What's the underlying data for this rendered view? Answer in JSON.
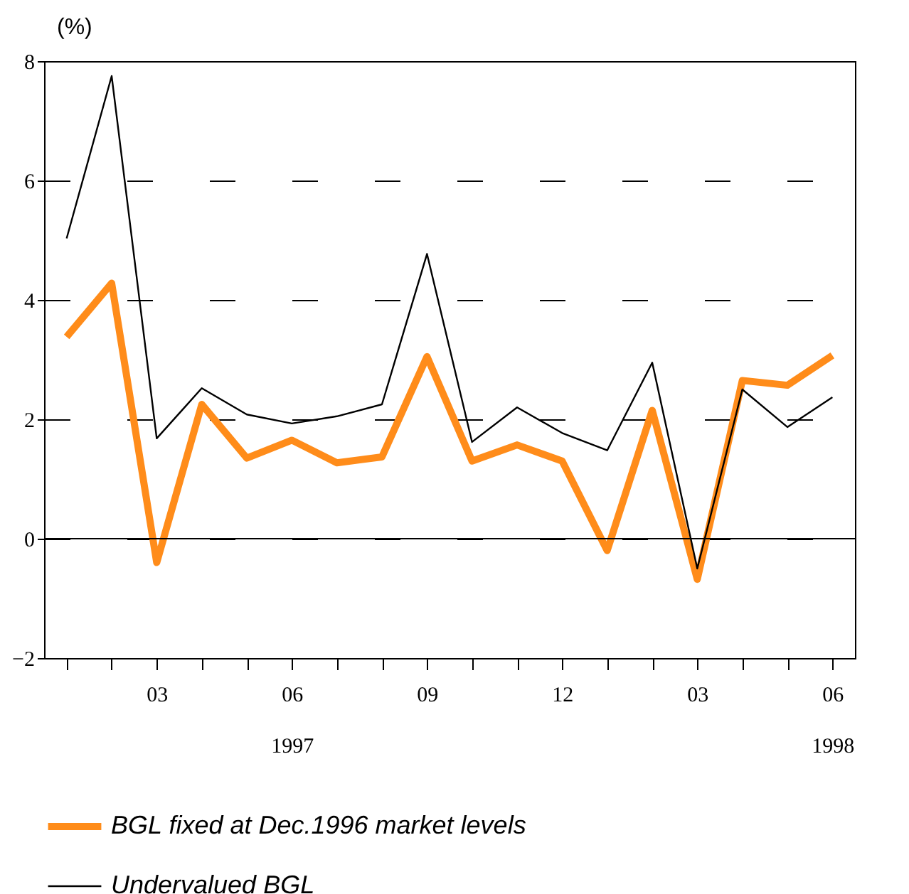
{
  "chart_data": {
    "type": "line",
    "ylabel": "(%)",
    "categories": [
      null,
      null,
      "03",
      null,
      null,
      "06\n1997",
      null,
      null,
      "09",
      null,
      null,
      "12",
      null,
      null,
      "03",
      null,
      null,
      "06\n1998"
    ],
    "series": [
      {
        "name": "BGL fixed at Dec.1996 market levels",
        "color": "#ff8c1a",
        "values": [
          3.38,
          4.28,
          -0.4,
          2.25,
          1.35,
          1.65,
          1.27,
          1.37,
          3.05,
          1.3,
          1.57,
          1.3,
          -0.2,
          2.15,
          -0.68,
          2.65,
          2.57,
          3.07
        ]
      },
      {
        "name": "Undervalued BGL",
        "color": "#000000",
        "values": [
          5.03,
          7.75,
          1.68,
          2.52,
          2.08,
          1.93,
          2.05,
          2.25,
          4.77,
          1.62,
          2.2,
          1.77,
          1.48,
          2.95,
          -0.5,
          2.5,
          1.87,
          2.37
        ]
      }
    ],
    "ylim": [
      -2,
      8
    ],
    "yticks": [
      -2,
      0,
      2,
      4,
      6,
      8
    ],
    "grid": "y",
    "legend": "bottom",
    "ref_lines": [
      {
        "axis": "y",
        "value": 0,
        "color": "#000000"
      }
    ]
  }
}
